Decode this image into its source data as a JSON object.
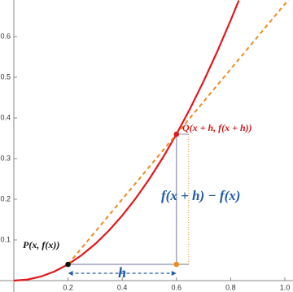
{
  "chart_data": {
    "type": "line",
    "xlim": [
      -0.051,
      1.03
    ],
    "ylim": [
      -0.028,
      0.69
    ],
    "xticks": [
      0.2,
      0.4,
      0.6,
      0.8,
      {
        "value": 1,
        "label": "1.0"
      }
    ],
    "yticks": [
      0.1,
      0.2,
      0.3,
      0.4,
      0.5,
      0.6
    ],
    "series": [
      {
        "color": "#e0191c",
        "x": [
          0,
          0.05,
          0.1,
          0.15,
          0.2,
          0.25,
          0.3,
          0.35,
          0.4,
          0.45,
          0.5,
          0.55,
          0.6,
          0.65,
          0.7,
          0.75,
          0.8,
          0.83
        ],
        "values": [
          0,
          0.0025,
          0.01,
          0.0225,
          0.04,
          0.0625,
          0.09,
          0.1225,
          0.16,
          0.2025,
          0.25,
          0.3025,
          0.36,
          0.4225,
          0.49,
          0.5625,
          0.64,
          0.6889
        ]
      },
      {
        "color": "#f08a1c",
        "dashed": true,
        "x": [
          0.2,
          1.02
        ],
        "values": [
          0.04,
          0.696
        ]
      }
    ],
    "points": [
      {
        "x": 0.2,
        "y": 0.04,
        "color": "#111111"
      },
      {
        "x": 0.6,
        "y": 0.36,
        "color": "#e0191c"
      },
      {
        "x": 0.6,
        "y": 0.04,
        "color": "#f08a1c"
      }
    ],
    "annotations": {
      "p_label": "P(x, f(x))",
      "q_label": "Q(x + h, f(x + h))",
      "rise_label": "f(x + h) − f(x)",
      "run_label": "h"
    }
  }
}
